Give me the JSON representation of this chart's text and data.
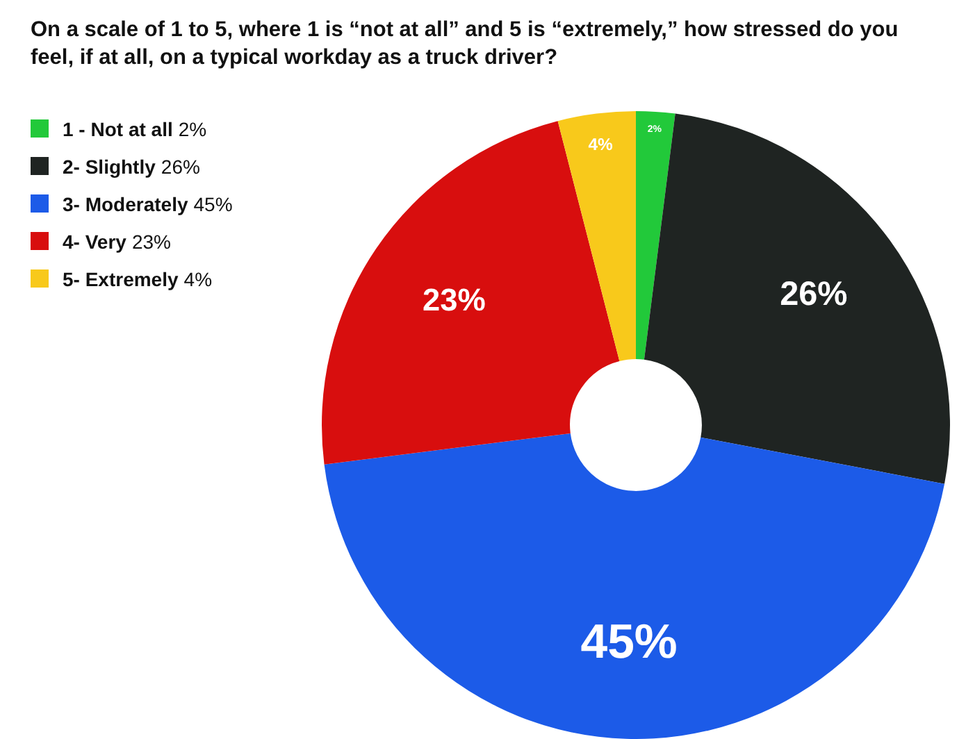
{
  "chart_data": {
    "type": "donut",
    "title": "On a scale of 1 to 5, where 1 is “not at all” and 5 is “extremely,” how stressed do you feel, if at all, on a typical workday as a truck driver?",
    "categories": [
      "1 - Not at all",
      "2- Slightly",
      "3- Moderately",
      "4- Very",
      "5- Extremely"
    ],
    "values": [
      2,
      26,
      45,
      23,
      4
    ],
    "value_labels": [
      "2%",
      "26%",
      "45%",
      "23%",
      "4%"
    ],
    "colors": [
      "#22c93a",
      "#1f2422",
      "#1c5be8",
      "#d80e0e",
      "#f8c91b"
    ],
    "legend": "top left"
  }
}
